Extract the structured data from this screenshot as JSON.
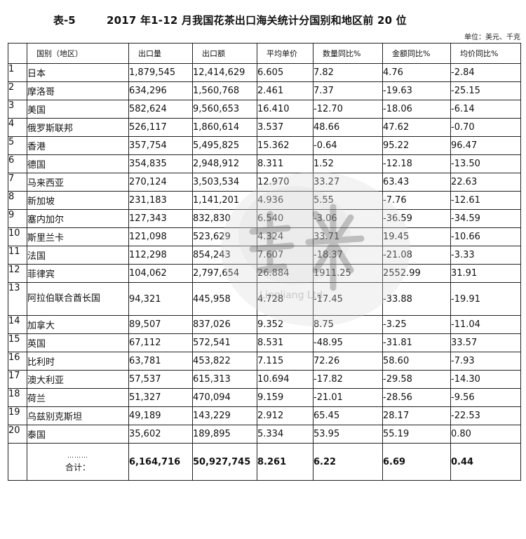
{
  "table_label": "表-5",
  "title": "2017 年1-12 月我国花茶出口海关统计分国别和地区前 20 位",
  "unit": "单位：美元、千克",
  "headers": [
    "国别（地区）",
    "出口量",
    "出口额",
    "平均单价",
    "数量同比%",
    "金额同比%",
    "均价同比%"
  ],
  "rows": [
    {
      "n": "1",
      "country": "日本",
      "qty": "1,879,545",
      "amount": "12,414,629",
      "price": "6.605",
      "qty_yoy": "7.82",
      "amt_yoy": "4.76",
      "price_yoy": "-2.84"
    },
    {
      "n": "2",
      "country": "摩洛哥",
      "qty": "634,296",
      "amount": "1,560,768",
      "price": "2.461",
      "qty_yoy": "7.37",
      "amt_yoy": "-19.63",
      "price_yoy": "-25.15"
    },
    {
      "n": "3",
      "country": "美国",
      "qty": "582,624",
      "amount": "9,560,653",
      "price": "16.410",
      "qty_yoy": "-12.70",
      "amt_yoy": "-18.06",
      "price_yoy": "-6.14"
    },
    {
      "n": "4",
      "country": "俄罗斯联邦",
      "qty": "526,117",
      "amount": "1,860,614",
      "price": "3.537",
      "qty_yoy": "48.66",
      "amt_yoy": "47.62",
      "price_yoy": "-0.70"
    },
    {
      "n": "5",
      "country": "香港",
      "qty": "357,754",
      "amount": "5,495,825",
      "price": "15.362",
      "qty_yoy": "-0.64",
      "amt_yoy": "95.22",
      "price_yoy": "96.47"
    },
    {
      "n": "6",
      "country": "德国",
      "qty": "354,835",
      "amount": "2,948,912",
      "price": "8.311",
      "qty_yoy": "1.52",
      "amt_yoy": "-12.18",
      "price_yoy": "-13.50"
    },
    {
      "n": "7",
      "country": "马来西亚",
      "qty": "270,124",
      "amount": "3,503,534",
      "price": "12.970",
      "qty_yoy": "33.27",
      "amt_yoy": "63.43",
      "price_yoy": "22.63"
    },
    {
      "n": "8",
      "country": "新加坡",
      "qty": "231,183",
      "amount": "1,141,201",
      "price": "4.936",
      "qty_yoy": "5.55",
      "amt_yoy": "-7.76",
      "price_yoy": "-12.61"
    },
    {
      "n": "9",
      "country": "塞内加尔",
      "qty": "127,343",
      "amount": "832,830",
      "price": "6.540",
      "qty_yoy": "-3.06",
      "amt_yoy": "-36.59",
      "price_yoy": "-34.59"
    },
    {
      "n": "10",
      "country": "斯里兰卡",
      "qty": "121,098",
      "amount": "523,629",
      "price": "4.324",
      "qty_yoy": "33.71",
      "amt_yoy": "19.45",
      "price_yoy": "-10.66"
    },
    {
      "n": "11",
      "country": "法国",
      "qty": "112,298",
      "amount": "854,243",
      "price": "7.607",
      "qty_yoy": "-18.37",
      "amt_yoy": "-21.08",
      "price_yoy": "-3.33"
    },
    {
      "n": "12",
      "country": "菲律宾",
      "qty": "104,062",
      "amount": "2,797,654",
      "price": "26.884",
      "qty_yoy": "1911.25",
      "amt_yoy": "2552.99",
      "price_yoy": "31.91"
    },
    {
      "n": "13",
      "country": "阿拉伯联合酋长国",
      "qty": "94,321",
      "amount": "445,958",
      "price": "4.728",
      "qty_yoy": "-17.45",
      "amt_yoy": "-33.88",
      "price_yoy": "-19.91"
    },
    {
      "n": "14",
      "country": "加拿大",
      "qty": "89,507",
      "amount": "837,026",
      "price": "9.352",
      "qty_yoy": "8.75",
      "amt_yoy": "-3.25",
      "price_yoy": "-11.04"
    },
    {
      "n": "15",
      "country": "英国",
      "qty": "67,112",
      "amount": "572,541",
      "price": "8.531",
      "qty_yoy": "-48.95",
      "amt_yoy": "-31.81",
      "price_yoy": "33.57"
    },
    {
      "n": "16",
      "country": "比利时",
      "qty": "63,781",
      "amount": "453,822",
      "price": "7.115",
      "qty_yoy": "72.26",
      "amt_yoy": "58.60",
      "price_yoy": "-7.93"
    },
    {
      "n": "17",
      "country": "澳大利亚",
      "qty": "57,537",
      "amount": "615,313",
      "price": "10.694",
      "qty_yoy": "-17.82",
      "amt_yoy": "-29.58",
      "price_yoy": "-14.30"
    },
    {
      "n": "18",
      "country": "荷兰",
      "qty": "51,327",
      "amount": "470,094",
      "price": "9.159",
      "qty_yoy": "-21.01",
      "amt_yoy": "-28.56",
      "price_yoy": "-9.56"
    },
    {
      "n": "19",
      "country": "乌兹别克斯坦",
      "qty": "49,189",
      "amount": "143,229",
      "price": "2.912",
      "qty_yoy": "65.45",
      "amt_yoy": "28.17",
      "price_yoy": "-22.53"
    },
    {
      "n": "20",
      "country": "泰国",
      "qty": "35,602",
      "amount": "189,895",
      "price": "5.334",
      "qty_yoy": "53.95",
      "amt_yoy": "55.19",
      "price_yoy": "0.80"
    }
  ],
  "total": {
    "dots": "………",
    "label": "合计：",
    "qty": "6,164,716",
    "amount": "50,927,745",
    "price": "8.261",
    "qty_yoy": "6.22",
    "amt_yoy": "6.69",
    "price_yoy": "0.44"
  },
  "watermark_text": "Lingliang Ltd"
}
